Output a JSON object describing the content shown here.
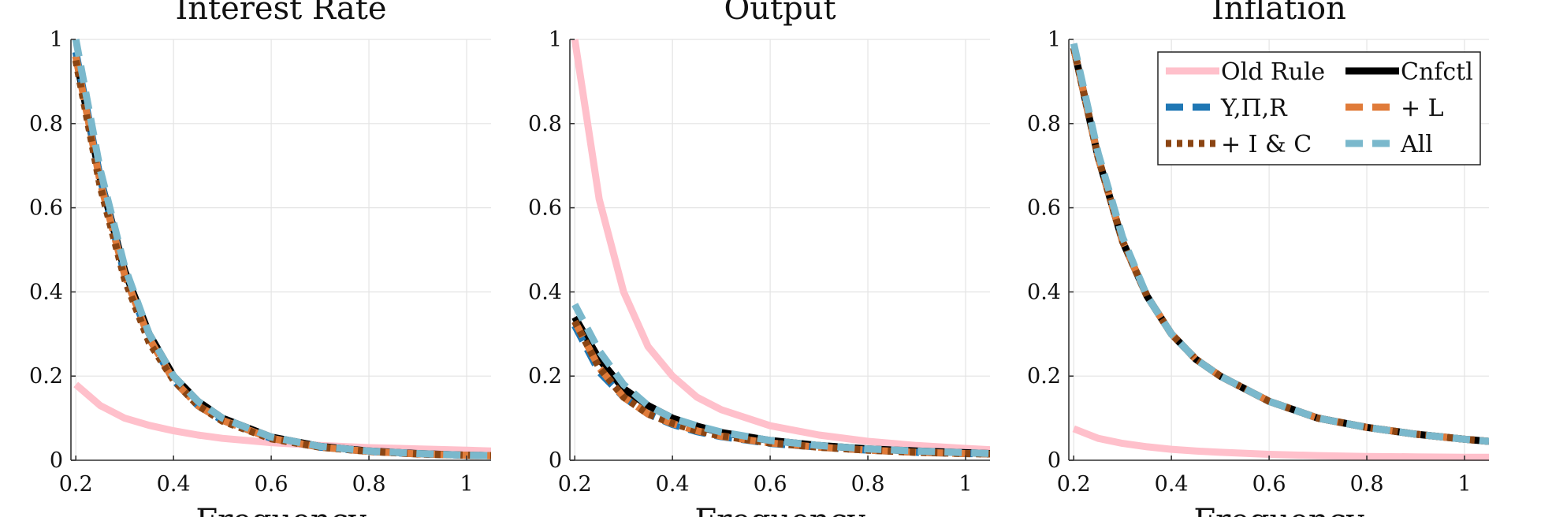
{
  "chart_data": {
    "type": "line",
    "xlim": [
      0.19,
      1.05
    ],
    "ylim": [
      0,
      1
    ],
    "xticks": [
      "0.2",
      "0.4",
      "0.6",
      "0.8",
      "1"
    ],
    "yticks": [
      "0",
      "0.2",
      "0.4",
      "0.6",
      "0.8",
      "1"
    ],
    "grid": true,
    "legend": {
      "placement": "top-right",
      "panel": 3,
      "entries": [
        "Old Rule",
        "Cnfctl",
        "Y,Π,R",
        "+ L",
        "+ I & C",
        "All"
      ]
    },
    "series_styles": [
      {
        "name": "Old Rule",
        "color": "#ffc0cb",
        "dash": "solid"
      },
      {
        "name": "Cnfctl",
        "color": "#000000",
        "dash": "solid"
      },
      {
        "name": "Y,Π,R",
        "color": "#1f77b4",
        "dash": "dashed"
      },
      {
        "name": "+ L",
        "color": "#e07b39",
        "dash": "dashed"
      },
      {
        "name": "+ I & C",
        "color": "#8b4513",
        "dash": "dotted"
      },
      {
        "name": "All",
        "color": "#7ab8cc",
        "dash": "dashed"
      }
    ],
    "x": [
      0.2,
      0.25,
      0.3,
      0.35,
      0.4,
      0.45,
      0.5,
      0.6,
      0.7,
      0.8,
      0.9,
      1.0,
      1.05
    ],
    "panels": [
      {
        "title": "Interest Rate",
        "xlabel": "Frequency",
        "series": [
          {
            "name": "Old Rule",
            "values": [
              0.18,
              0.13,
              0.1,
              0.083,
              0.07,
              0.06,
              0.052,
              0.042,
              0.035,
              0.03,
              0.027,
              0.024,
              0.022
            ]
          },
          {
            "name": "Cnfctl",
            "values": [
              0.96,
              0.67,
              0.45,
              0.3,
              0.2,
              0.14,
              0.1,
              0.055,
              0.033,
              0.022,
              0.016,
              0.012,
              0.011
            ]
          },
          {
            "name": "Y,Π,R",
            "values": [
              0.97,
              0.67,
              0.44,
              0.29,
              0.19,
              0.13,
              0.095,
              0.052,
              0.031,
              0.021,
              0.015,
              0.012,
              0.011
            ]
          },
          {
            "name": "+ L",
            "values": [
              0.96,
              0.66,
              0.44,
              0.29,
              0.19,
              0.13,
              0.095,
              0.052,
              0.031,
              0.021,
              0.015,
              0.012,
              0.011
            ]
          },
          {
            "name": "+ I & C",
            "values": [
              0.95,
              0.65,
              0.43,
              0.28,
              0.19,
              0.13,
              0.093,
              0.051,
              0.031,
              0.021,
              0.015,
              0.012,
              0.011
            ]
          },
          {
            "name": "All",
            "values": [
              1.0,
              0.69,
              0.46,
              0.3,
              0.2,
              0.14,
              0.1,
              0.055,
              0.033,
              0.022,
              0.016,
              0.012,
              0.011
            ]
          }
        ]
      },
      {
        "title": "Output",
        "xlabel": "Frequency",
        "series": [
          {
            "name": "Old Rule",
            "values": [
              1.0,
              0.62,
              0.4,
              0.27,
              0.2,
              0.15,
              0.12,
              0.082,
              0.06,
              0.045,
              0.035,
              0.028,
              0.025
            ]
          },
          {
            "name": "Cnfctl",
            "values": [
              0.34,
              0.24,
              0.17,
              0.13,
              0.1,
              0.081,
              0.066,
              0.047,
              0.035,
              0.027,
              0.022,
              0.018,
              0.016
            ]
          },
          {
            "name": "Y,Π,R",
            "values": [
              0.32,
              0.21,
              0.15,
              0.11,
              0.085,
              0.068,
              0.056,
              0.04,
              0.031,
              0.024,
              0.019,
              0.016,
              0.015
            ]
          },
          {
            "name": "+ L",
            "values": [
              0.33,
              0.22,
              0.15,
              0.11,
              0.087,
              0.07,
              0.057,
              0.041,
              0.031,
              0.024,
              0.019,
              0.016,
              0.015
            ]
          },
          {
            "name": "+ I & C",
            "values": [
              0.33,
              0.22,
              0.15,
              0.11,
              0.088,
              0.07,
              0.058,
              0.041,
              0.031,
              0.024,
              0.019,
              0.016,
              0.015
            ]
          },
          {
            "name": "All",
            "values": [
              0.37,
              0.26,
              0.18,
              0.13,
              0.1,
              0.082,
              0.067,
              0.047,
              0.035,
              0.027,
              0.022,
              0.018,
              0.016
            ]
          }
        ]
      },
      {
        "title": "Inflation",
        "xlabel": "Frequency",
        "series": [
          {
            "name": "Old Rule",
            "values": [
              0.075,
              0.052,
              0.04,
              0.032,
              0.026,
              0.022,
              0.019,
              0.014,
              0.011,
              0.009,
              0.008,
              0.007,
              0.007
            ]
          },
          {
            "name": "Cnfctl",
            "values": [
              0.98,
              0.72,
              0.52,
              0.39,
              0.3,
              0.24,
              0.2,
              0.14,
              0.1,
              0.078,
              0.062,
              0.05,
              0.045
            ]
          },
          {
            "name": "Y,Π,R",
            "values": [
              0.98,
              0.72,
              0.52,
              0.39,
              0.3,
              0.24,
              0.2,
              0.14,
              0.1,
              0.078,
              0.062,
              0.05,
              0.045
            ]
          },
          {
            "name": "+ L",
            "values": [
              0.98,
              0.72,
              0.52,
              0.39,
              0.3,
              0.24,
              0.2,
              0.14,
              0.1,
              0.078,
              0.062,
              0.05,
              0.045
            ]
          },
          {
            "name": "+ I & C",
            "values": [
              0.98,
              0.72,
              0.52,
              0.39,
              0.3,
              0.24,
              0.2,
              0.14,
              0.1,
              0.078,
              0.062,
              0.05,
              0.045
            ]
          },
          {
            "name": "All",
            "values": [
              0.99,
              0.73,
              0.53,
              0.39,
              0.3,
              0.24,
              0.2,
              0.14,
              0.1,
              0.078,
              0.062,
              0.05,
              0.045
            ]
          }
        ]
      }
    ]
  }
}
